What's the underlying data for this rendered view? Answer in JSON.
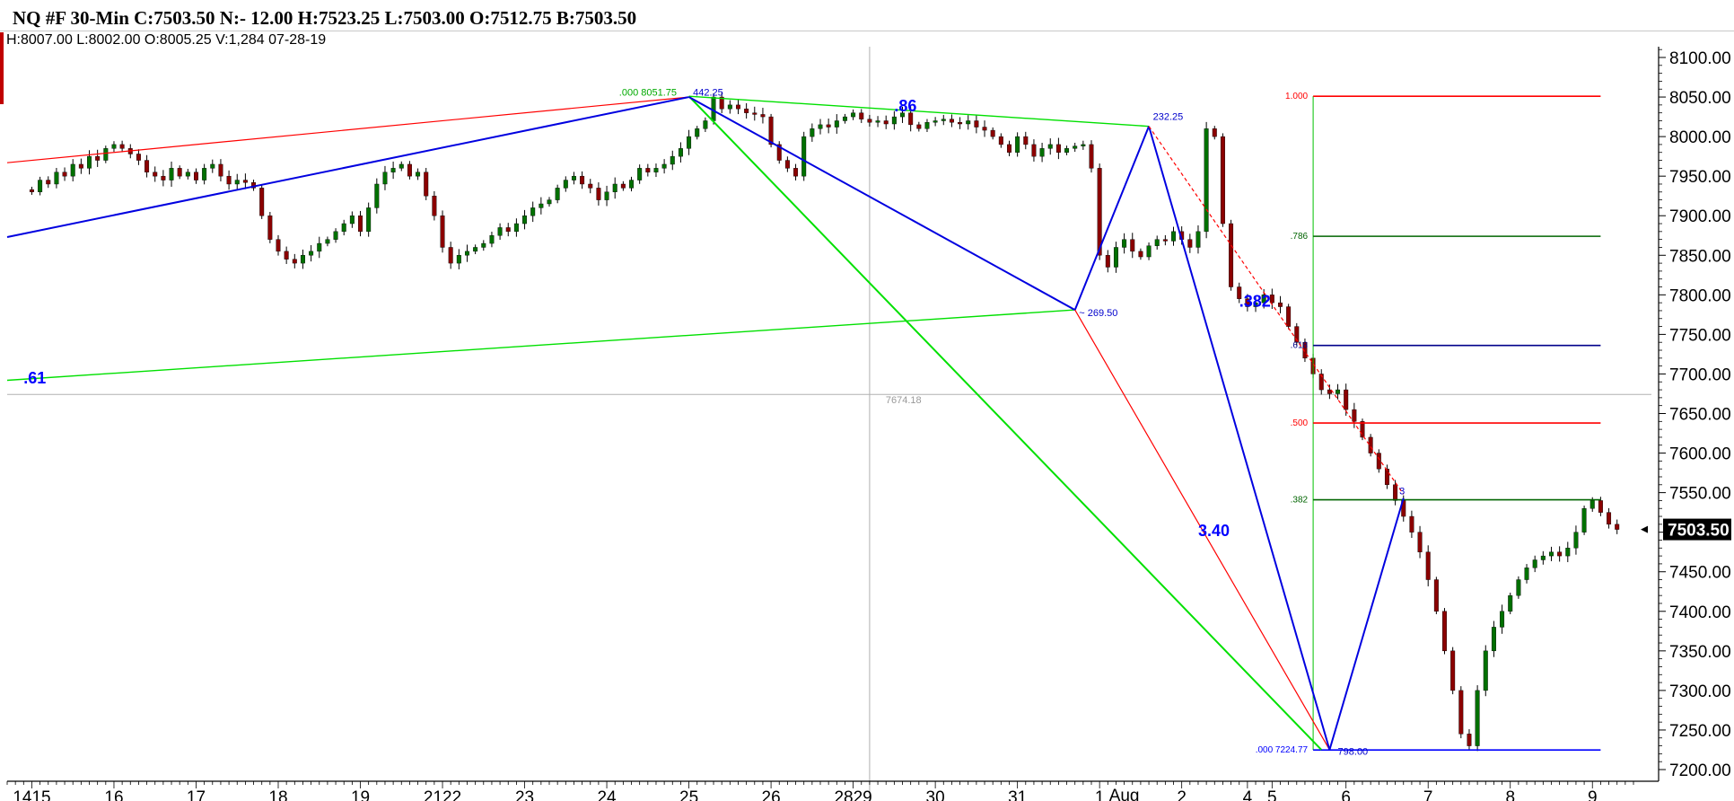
{
  "header": {
    "title": "NQ #F 30-Min C:7503.50 N:- 12.00 H:7523.25 L:7503.00 O:7512.75 B:7503.50",
    "bar_info": "H:8007.00  L:8002.00  O:8005.25  V:1,284  07-28-19"
  },
  "colors": {
    "up_candle": "#007000",
    "down_candle": "#8b0000",
    "wick": "#000000",
    "blue_pattern": "#0000e0",
    "green_pattern": "#00e000",
    "red_pattern": "#ff0000",
    "fib_red": "#ff0000",
    "fib_green": "#006400",
    "fib_navy": "#00008b",
    "fib_blue": "#0000ff",
    "label_blue": "#0000ff"
  },
  "chart_data": {
    "type": "candlestick",
    "y_axis": {
      "min": 7200,
      "max": 8100,
      "ticks": [
        "7200.00",
        "7250.00",
        "7300.00",
        "7350.00",
        "7400.00",
        "7450.00",
        "7500.00",
        "7550.00",
        "7600.00",
        "7650.00",
        "7700.00",
        "7750.00",
        "7800.00",
        "7850.00",
        "7900.00",
        "7950.00",
        "8000.00",
        "8050.00",
        "8100.00"
      ],
      "last_price_label": "7503.50",
      "last_price": 7503.5
    },
    "x_axis": {
      "ticks": [
        {
          "label": "1415",
          "idx": 0
        },
        {
          "label": "16",
          "idx": 10
        },
        {
          "label": "17",
          "idx": 20
        },
        {
          "label": "18",
          "idx": 30
        },
        {
          "label": "19",
          "idx": 40
        },
        {
          "label": "2122",
          "idx": 50
        },
        {
          "label": "23",
          "idx": 60
        },
        {
          "label": "24",
          "idx": 70
        },
        {
          "label": "25",
          "idx": 80
        },
        {
          "label": "26",
          "idx": 90
        },
        {
          "label": "2829",
          "idx": 100
        },
        {
          "label": "30",
          "idx": 110
        },
        {
          "label": "31",
          "idx": 120
        },
        {
          "label": "1",
          "idx": 130
        },
        {
          "label": "2",
          "idx": 140
        },
        {
          "label": "4",
          "idx": 148
        },
        {
          "label": "5",
          "idx": 151
        },
        {
          "label": "6",
          "idx": 160
        },
        {
          "label": "7",
          "idx": 170
        },
        {
          "label": "8",
          "idx": 180
        },
        {
          "label": "9",
          "idx": 190
        }
      ],
      "month_label": "Aug",
      "month_label_idx": 133,
      "min_idx": -3,
      "max_idx": 195
    },
    "crosshair": {
      "idx": 102,
      "price": 7674.18,
      "label": "7674.18"
    },
    "series": {
      "closes": [
        7930,
        7945,
        7940,
        7955,
        7950,
        7965,
        7960,
        7975,
        7970,
        7985,
        7990,
        7985,
        7978,
        7970,
        7955,
        7950,
        7945,
        7960,
        7950,
        7955,
        7945,
        7960,
        7965,
        7950,
        7940,
        7945,
        7942,
        7935,
        7900,
        7870,
        7855,
        7845,
        7840,
        7850,
        7855,
        7865,
        7870,
        7880,
        7890,
        7900,
        7880,
        7910,
        7940,
        7955,
        7960,
        7965,
        7950,
        7955,
        7925,
        7900,
        7860,
        7840,
        7850,
        7855,
        7860,
        7865,
        7875,
        7885,
        7880,
        7890,
        7900,
        7910,
        7915,
        7920,
        7935,
        7945,
        7950,
        7940,
        7935,
        7920,
        7930,
        7940,
        7935,
        7945,
        7960,
        7955,
        7960,
        7965,
        7975,
        7985,
        8000,
        8010,
        8020,
        8050,
        8035,
        8040,
        8035,
        8030,
        8028,
        8025,
        7990,
        7970,
        7960,
        7950,
        8000,
        8010,
        8015,
        8012,
        8020,
        8025,
        8030,
        8022,
        8018,
        8020,
        8016,
        8025,
        8030,
        8015,
        8010,
        8018,
        8020,
        8022,
        8018,
        8016,
        8020,
        8012,
        8008,
        8000,
        7990,
        7980,
        8000,
        7990,
        7975,
        7985,
        7990,
        7980,
        7985,
        7988,
        7990,
        7960,
        7850,
        7835,
        7860,
        7870,
        7855,
        7848,
        7862,
        7870,
        7868,
        7880,
        7870,
        7860,
        7880,
        8010,
        8000,
        7890,
        7810,
        7795,
        7785,
        7790,
        7800,
        7790,
        7785,
        7760,
        7740,
        7720,
        7700,
        7680,
        7675,
        7680,
        7655,
        7640,
        7620,
        7600,
        7580,
        7560,
        7540,
        7520,
        7500,
        7475,
        7440,
        7400,
        7350,
        7300,
        7245,
        7230,
        7300,
        7350,
        7380,
        7400,
        7420,
        7440,
        7455,
        7465,
        7470,
        7475,
        7470,
        7480,
        7500,
        7530,
        7540,
        7525,
        7510,
        7503.5
      ]
    },
    "x_start_idx": 0,
    "lines": [
      {
        "name": "red-upper-line",
        "color": "#ff0000",
        "w": 1.2,
        "x1": -3,
        "y1": 7967,
        "x2": 80,
        "y2": 8050
      },
      {
        "name": "blue-upper-line",
        "color": "#0000e0",
        "w": 2,
        "x1": -3,
        "y1": 7873,
        "x2": 80,
        "y2": 8050
      },
      {
        "name": "green-61-line",
        "color": "#00e000",
        "w": 1.4,
        "x1": -3,
        "y1": 7692,
        "x2": 127,
        "y2": 7781
      },
      {
        "name": "green-top-line",
        "color": "#00e000",
        "w": 1.4,
        "x1": 80,
        "y1": 8051,
        "x2": 136,
        "y2": 8013
      },
      {
        "name": "green-XD-line",
        "color": "#00e000",
        "w": 2,
        "x1": 80,
        "y1": 8051,
        "x2": 157,
        "y2": 7225
      },
      {
        "name": "blue-XA-line",
        "color": "#0000e0",
        "w": 2,
        "x1": 80,
        "y1": 8050,
        "x2": 127,
        "y2": 7781
      },
      {
        "name": "blue-AB-line",
        "color": "#0000e0",
        "w": 2,
        "x1": 127,
        "y1": 7781,
        "x2": 136,
        "y2": 8013
      },
      {
        "name": "red-AC-line",
        "color": "#ff0000",
        "w": 1.2,
        "x1": 127,
        "y1": 7781,
        "x2": 158,
        "y2": 7225
      },
      {
        "name": "blue-BC-line",
        "color": "#0000e0",
        "w": 2,
        "x1": 136,
        "y1": 8013,
        "x2": 158,
        "y2": 7225
      },
      {
        "name": "blue-CD-line",
        "color": "#0000e0",
        "w": 2,
        "x1": 158,
        "y1": 7225,
        "x2": 167,
        "y2": 7543
      },
      {
        "name": "red-dashed-line",
        "color": "#ff0000",
        "w": 1.2,
        "dash": "4,3",
        "x1": 136,
        "y1": 8013,
        "x2": 167,
        "y2": 7548
      }
    ],
    "fib_levels": [
      {
        "label": "1.000",
        "price": 8051,
        "color": "#ff0000"
      },
      {
        "label": ".786",
        "price": 7874,
        "color": "#006400"
      },
      {
        "label": ".618",
        "price": 7736,
        "color": "#00008b"
      },
      {
        "label": ".500",
        "price": 7638,
        "color": "#ff0000"
      },
      {
        "label": ".382",
        "price": 7541,
        "color": "#006400"
      },
      {
        "label": ".000  7224.77",
        "price": 7224.77,
        "color": "#0000ff"
      }
    ],
    "fib_x_start_idx": 156,
    "fib_x_end_idx": 191,
    "annotations": [
      {
        "text": ".86",
        "idx": 105,
        "price": 8032,
        "size": 18,
        "color": "#0000ff",
        "bold": true
      },
      {
        "text": ".382",
        "idx": 147,
        "price": 7785,
        "size": 18,
        "color": "#0000ff",
        "bold": true
      },
      {
        "text": ".61",
        "idx": -1,
        "price": 7688,
        "size": 18,
        "color": "#0000ff",
        "bold": true
      },
      {
        "text": "3.40",
        "idx": 142,
        "price": 7495,
        "size": 18,
        "color": "#0000ff",
        "bold": true
      },
      {
        "text": "232.25",
        "idx": 136.5,
        "price": 8021,
        "size": 11,
        "color": "#0000cc",
        "bold": false
      },
      {
        "text": "~ 269.50",
        "idx": 127.5,
        "price": 7773,
        "size": 11,
        "color": "#0000cc",
        "bold": false
      },
      {
        "text": "798.00",
        "idx": 159,
        "price": 7219,
        "size": 11,
        "color": "#0000cc",
        "bold": false
      },
      {
        "text": ".000  8051.75",
        "idx": 71.5,
        "price": 8052,
        "size": 11,
        "color": "#00aa00",
        "bold": false
      },
      {
        "text": "442.25",
        "idx": 80.5,
        "price": 8052,
        "size": 11,
        "color": "#0000cc",
        "bold": false
      },
      {
        "text": "3",
        "idx": 166.5,
        "price": 7548,
        "size": 11,
        "color": "#0000cc",
        "bold": false
      }
    ]
  }
}
